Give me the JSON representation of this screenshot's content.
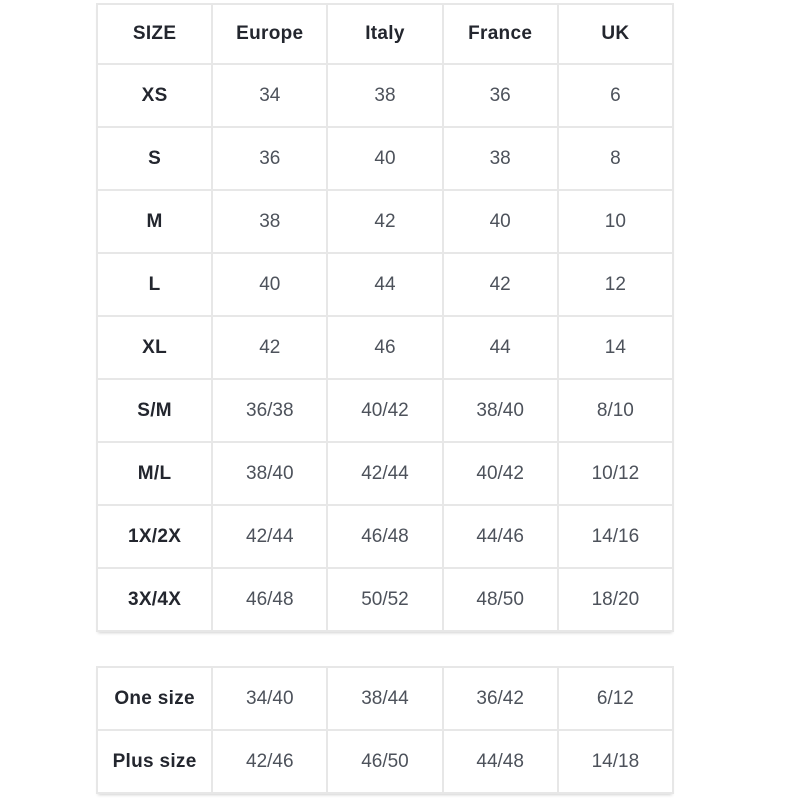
{
  "colors": {
    "background": "#ffffff",
    "border": "#e7e7e7",
    "header_text": "#23262e",
    "value_text": "#4d525b"
  },
  "tables": [
    {
      "name": "size-conversion-table",
      "columns": [
        "SIZE",
        "Europe",
        "Italy",
        "France",
        "UK"
      ],
      "rows": [
        [
          "XS",
          "34",
          "38",
          "36",
          "6"
        ],
        [
          "S",
          "36",
          "40",
          "38",
          "8"
        ],
        [
          "M",
          "38",
          "42",
          "40",
          "10"
        ],
        [
          "L",
          "40",
          "44",
          "42",
          "12"
        ],
        [
          "XL",
          "42",
          "46",
          "44",
          "14"
        ],
        [
          "S/M",
          "36/38",
          "40/42",
          "38/40",
          "8/10"
        ],
        [
          "M/L",
          "38/40",
          "42/44",
          "40/42",
          "10/12"
        ],
        [
          "1X/2X",
          "42/44",
          "46/48",
          "44/46",
          "14/16"
        ],
        [
          "3X/4X",
          "46/48",
          "50/52",
          "48/50",
          "18/20"
        ]
      ]
    },
    {
      "name": "one-size-plus-size-table",
      "columns": [],
      "rows": [
        [
          "One size",
          "34/40",
          "38/44",
          "36/42",
          "6/12"
        ],
        [
          "Plus size",
          "42/46",
          "46/50",
          "44/48",
          "14/18"
        ]
      ]
    }
  ],
  "chart_data": {
    "type": "table",
    "title": "",
    "columns": [
      "SIZE",
      "Europe",
      "Italy",
      "France",
      "UK"
    ],
    "rows": [
      [
        "XS",
        "34",
        "38",
        "36",
        "6"
      ],
      [
        "S",
        "36",
        "40",
        "38",
        "8"
      ],
      [
        "M",
        "38",
        "42",
        "40",
        "10"
      ],
      [
        "L",
        "40",
        "44",
        "42",
        "12"
      ],
      [
        "XL",
        "42",
        "46",
        "44",
        "14"
      ],
      [
        "S/M",
        "36/38",
        "40/42",
        "38/40",
        "8/10"
      ],
      [
        "M/L",
        "38/40",
        "42/44",
        "40/42",
        "10/12"
      ],
      [
        "1X/2X",
        "42/44",
        "46/48",
        "44/46",
        "14/16"
      ],
      [
        "3X/4X",
        "46/48",
        "50/52",
        "48/50",
        "18/20"
      ],
      [
        "One size",
        "34/40",
        "38/44",
        "36/42",
        "6/12"
      ],
      [
        "Plus size",
        "42/46",
        "46/50",
        "44/48",
        "14/18"
      ]
    ]
  }
}
